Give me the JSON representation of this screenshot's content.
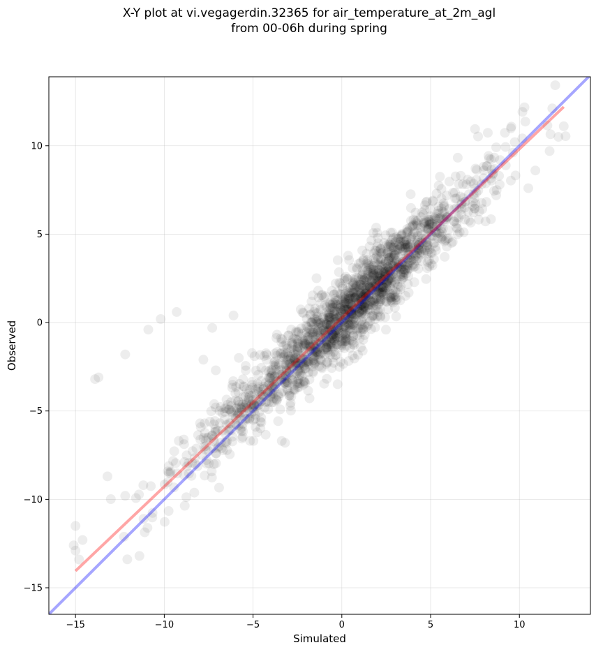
{
  "chart_data": {
    "type": "scatter",
    "title_line1": "X-Y plot at vi.vegagerdin.32365 for air_temperature_at_2m_agl",
    "title_line2": "from 00-06h during spring",
    "xlabel": "Simulated",
    "ylabel": "Observed",
    "xlim": [
      -16.5,
      14.0
    ],
    "ylim": [
      -16.5,
      13.9
    ],
    "xticks": [
      -15,
      -10,
      -5,
      0,
      5,
      10
    ],
    "yticks": [
      -15,
      -10,
      -5,
      0,
      5,
      10
    ],
    "xtick_labels": [
      "−15",
      "−10",
      "−5",
      "0",
      "5",
      "10"
    ],
    "ytick_labels": [
      "−15",
      "−10",
      "−5",
      "0",
      "5",
      "10"
    ],
    "grid": true,
    "point_color": "#000000",
    "point_alpha": 0.07,
    "approx_point_count": 1800,
    "outlier_points": [
      [
        -13.9,
        -3.2
      ],
      [
        -13.7,
        -3.1
      ],
      [
        -12.2,
        -1.8
      ],
      [
        -10.9,
        -0.4
      ],
      [
        -10.2,
        0.2
      ],
      [
        -9.3,
        0.6
      ],
      [
        -7.8,
        -2.1
      ],
      [
        -7.1,
        -2.7
      ],
      [
        -6.1,
        0.4
      ],
      [
        -5.8,
        -2.0
      ],
      [
        -7.3,
        -0.3
      ],
      [
        -15.0,
        -11.5
      ],
      [
        -15.1,
        -12.6
      ],
      [
        -14.8,
        -13.4
      ],
      [
        -15.0,
        -12.9
      ],
      [
        -13.2,
        -8.7
      ],
      [
        -11.4,
        -13.2
      ],
      [
        -3.2,
        -6.8
      ],
      [
        -12.2,
        -9.8
      ],
      [
        -14.6,
        -12.3
      ],
      [
        10.9,
        8.6
      ],
      [
        12.2,
        10.5
      ],
      [
        12.5,
        11.1
      ],
      [
        11.7,
        9.7
      ],
      [
        10.5,
        7.6
      ]
    ],
    "one_to_one_line": {
      "name": "",
      "color": "#0000ff",
      "x": [
        -16.5,
        14.0
      ],
      "y": [
        -16.5,
        14.0
      ]
    },
    "fit_line": {
      "name": "",
      "color": "#ff0000",
      "x": [
        -15.0,
        12.5
      ],
      "y": [
        -14.05,
        12.2
      ]
    }
  }
}
